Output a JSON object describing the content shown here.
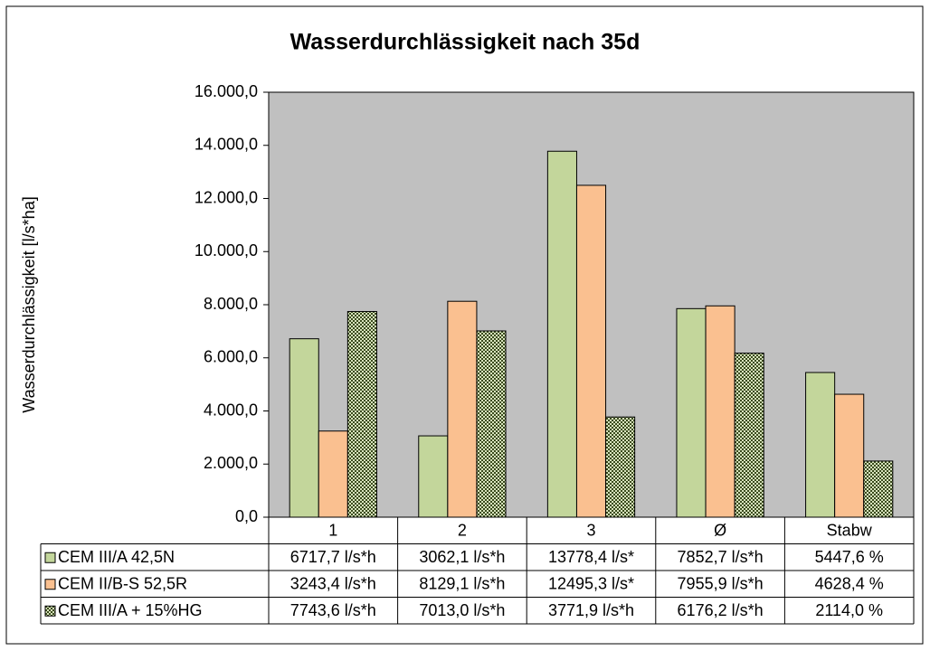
{
  "chart_data": {
    "type": "bar",
    "title": "Wasserdurchlässigkeit nach 35d",
    "y_label": "Wasserdurchlässigkeit [l/s*ha]",
    "categories": [
      "1",
      "2",
      "3",
      "Ø",
      "Stabw"
    ],
    "series": [
      {
        "name": "CEM III/A 42,5N",
        "color": "#c3d69b",
        "values": [
          6717.7,
          3062.1,
          13778.4,
          7852.7,
          5447.6
        ],
        "value_labels": [
          "6717,7 l/s*h",
          "3062,1 l/s*h",
          "13778,4 l/s*",
          "7852,7 l/s*h",
          "5447,6 %"
        ]
      },
      {
        "name": "CEM II/B-S 52,5R",
        "color": "#fac090",
        "values": [
          3243.4,
          8129.1,
          12495.3,
          7955.9,
          4628.4
        ],
        "value_labels": [
          "3243,4 l/s*h",
          "8129,1 l/s*h",
          "12495,3 l/s*",
          "7955,9 l/s*h",
          "4628,4 %"
        ]
      },
      {
        "name": "CEM III/A + 15%HG",
        "color": "#3a4a1c",
        "values": [
          7743.6,
          7013.0,
          3771.9,
          6176.2,
          2114.0
        ],
        "value_labels": [
          "7743,6 l/s*h",
          "7013,0 l/s*h",
          "3771,9 l/s*h",
          "6176,2 l/s*h",
          "2114,0 %"
        ]
      }
    ],
    "ylim": [
      0,
      16000
    ],
    "yticks": [
      {
        "value": 0,
        "label": "0,0"
      },
      {
        "value": 2000,
        "label": "2.000,0"
      },
      {
        "value": 4000,
        "label": "4.000,0"
      },
      {
        "value": 6000,
        "label": "6.000,0"
      },
      {
        "value": 8000,
        "label": "8.000,0"
      },
      {
        "value": 10000,
        "label": "10.000,0"
      },
      {
        "value": 12000,
        "label": "12.000,0"
      },
      {
        "value": 14000,
        "label": "14.000,0"
      },
      {
        "value": 16000,
        "label": "16.000,0"
      }
    ],
    "grid": false
  }
}
